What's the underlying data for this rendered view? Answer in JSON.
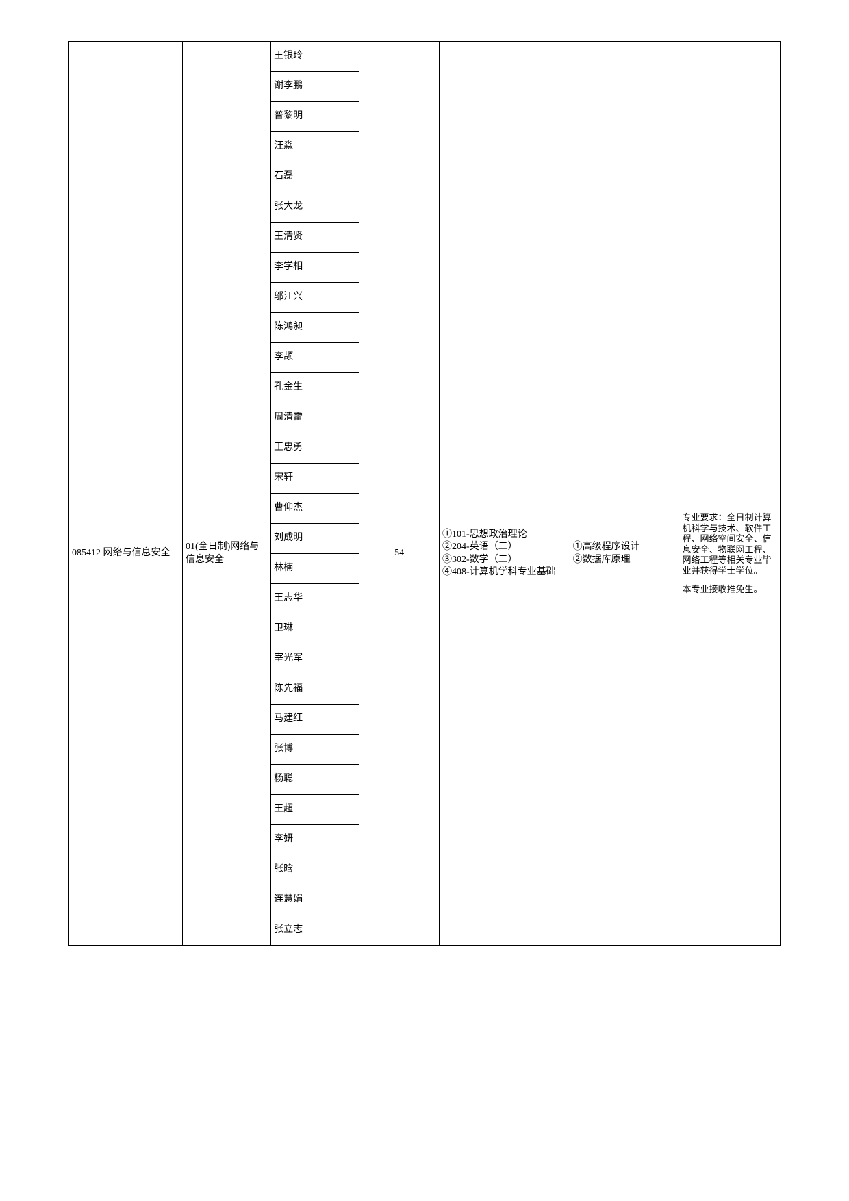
{
  "section1_names": [
    "王银玲",
    "谢李鹏",
    "普黎明",
    "汪淼"
  ],
  "section2_names": [
    "石磊",
    "张大龙",
    "王清贤",
    "李学相",
    "邬江兴",
    "陈鸿昶",
    "李颉",
    "孔金生",
    "周清雷",
    "王忠勇",
    "宋轩",
    "曹仰杰",
    "刘成明",
    "林楠",
    "王志华",
    "卫琳",
    "宰光军",
    "陈先福",
    "马建红",
    "张博",
    "杨聪",
    "王超",
    "李妍",
    "张晗",
    "连慧娟",
    "张立志"
  ],
  "major_code": "085412 网络与信息安全",
  "direction": "01(全日制)网络与信息安全",
  "quota": "54",
  "exam_subjects": "①101-思想政治理论\n②204-英语（二）\n③302-数学（二）\n④408-计算机学科专业基础",
  "retest_subjects": "①高级程序设计\n②数据库原理",
  "requirements_p1": "专业要求：全日制计算机科学与技术、软件工程、网络空间安全、信息安全、物联网工程、网络工程等相关专业毕业并获得学士学位。",
  "requirements_p2": "本专业接收推免生。"
}
